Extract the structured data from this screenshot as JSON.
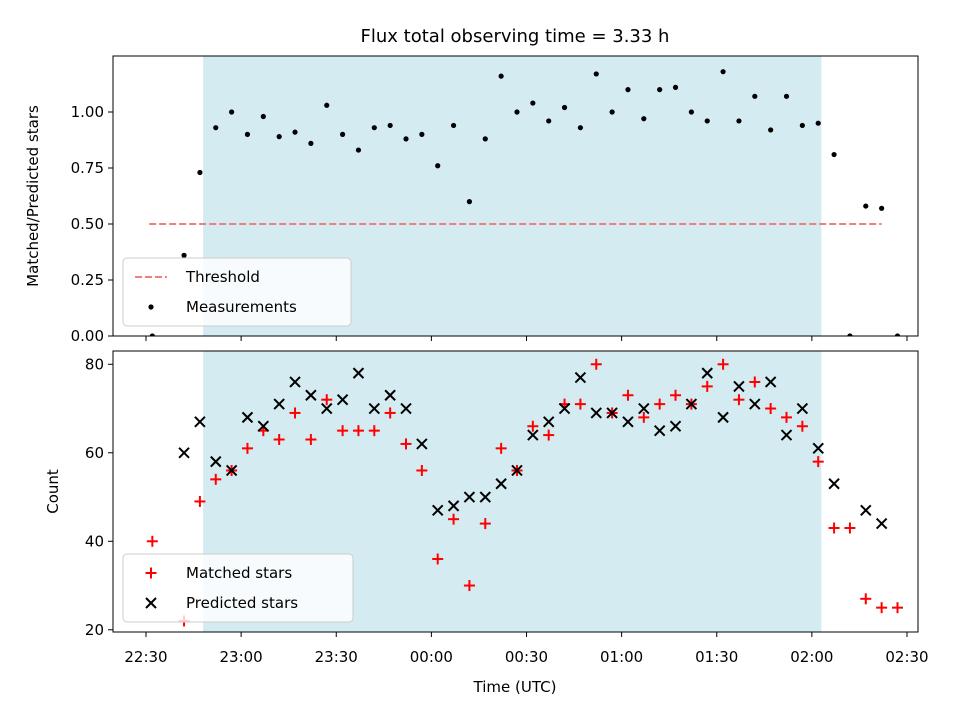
{
  "chart_data": {
    "type": "scatter",
    "title": "Flux total observing time = 3.33 h",
    "xlabel": "Time (UTC)",
    "x_ticks": [
      "22:30",
      "23:00",
      "23:30",
      "00:00",
      "00:30",
      "01:00",
      "01:30",
      "02:00",
      "02:30"
    ],
    "shaded_window": {
      "start": "22:48",
      "end": "02:03",
      "color": "#add8e6"
    },
    "panels": [
      {
        "ylabel": "Matched/Predicted stars",
        "ylim": [
          0,
          1.25
        ],
        "y_ticks": [
          "0.00",
          "0.25",
          "0.50",
          "0.75",
          "1.00"
        ],
        "legend_position": "lower-left",
        "threshold": {
          "name": "Threshold",
          "value": 0.5,
          "x_start": "22:31",
          "x_end": "02:22",
          "color": "#f08080"
        },
        "series": [
          {
            "name": "Measurements",
            "marker": "dot",
            "color": "#000000",
            "points": [
              [
                "22:32",
                0.0
              ],
              [
                "22:42",
                0.36
              ],
              [
                "22:47",
                0.73
              ],
              [
                "22:52",
                0.93
              ],
              [
                "22:57",
                1.0
              ],
              [
                "23:02",
                0.9
              ],
              [
                "23:07",
                0.98
              ],
              [
                "23:12",
                0.89
              ],
              [
                "23:17",
                0.91
              ],
              [
                "23:22",
                0.86
              ],
              [
                "23:27",
                1.03
              ],
              [
                "23:32",
                0.9
              ],
              [
                "23:37",
                0.83
              ],
              [
                "23:42",
                0.93
              ],
              [
                "23:47",
                0.94
              ],
              [
                "23:52",
                0.88
              ],
              [
                "23:57",
                0.9
              ],
              [
                "00:02",
                0.76
              ],
              [
                "00:07",
                0.94
              ],
              [
                "00:12",
                0.6
              ],
              [
                "00:17",
                0.88
              ],
              [
                "00:22",
                1.16
              ],
              [
                "00:27",
                1.0
              ],
              [
                "00:32",
                1.04
              ],
              [
                "00:37",
                0.96
              ],
              [
                "00:42",
                1.02
              ],
              [
                "00:47",
                0.93
              ],
              [
                "00:52",
                1.17
              ],
              [
                "00:57",
                1.0
              ],
              [
                "01:02",
                1.1
              ],
              [
                "01:07",
                0.97
              ],
              [
                "01:12",
                1.1
              ],
              [
                "01:17",
                1.11
              ],
              [
                "01:22",
                1.0
              ],
              [
                "01:27",
                0.96
              ],
              [
                "01:32",
                1.18
              ],
              [
                "01:37",
                0.96
              ],
              [
                "01:42",
                1.07
              ],
              [
                "01:47",
                0.92
              ],
              [
                "01:52",
                1.07
              ],
              [
                "01:57",
                0.94
              ],
              [
                "02:02",
                0.95
              ],
              [
                "02:07",
                0.81
              ],
              [
                "02:12",
                0.0
              ],
              [
                "02:17",
                0.58
              ],
              [
                "02:22",
                0.57
              ],
              [
                "02:27",
                0.0
              ]
            ]
          }
        ]
      },
      {
        "ylabel": "Count",
        "ylim": [
          19.5,
          83
        ],
        "y_ticks": [
          "20",
          "40",
          "60",
          "80"
        ],
        "legend_position": "lower-left",
        "series": [
          {
            "name": "Matched stars",
            "marker": "plus",
            "color": "#ff0000",
            "points": [
              [
                "22:32",
                40
              ],
              [
                "22:42",
                22
              ],
              [
                "22:47",
                49
              ],
              [
                "22:52",
                54
              ],
              [
                "22:57",
                56
              ],
              [
                "23:02",
                61
              ],
              [
                "23:07",
                65
              ],
              [
                "23:12",
                63
              ],
              [
                "23:17",
                69
              ],
              [
                "23:22",
                63
              ],
              [
                "23:27",
                72
              ],
              [
                "23:32",
                65
              ],
              [
                "23:37",
                65
              ],
              [
                "23:42",
                65
              ],
              [
                "23:47",
                69
              ],
              [
                "23:52",
                62
              ],
              [
                "23:57",
                56
              ],
              [
                "00:02",
                36
              ],
              [
                "00:07",
                45
              ],
              [
                "00:12",
                30
              ],
              [
                "00:17",
                44
              ],
              [
                "00:22",
                61
              ],
              [
                "00:27",
                56
              ],
              [
                "00:32",
                66
              ],
              [
                "00:37",
                64
              ],
              [
                "00:42",
                71
              ],
              [
                "00:47",
                71
              ],
              [
                "00:52",
                80
              ],
              [
                "00:57",
                69
              ],
              [
                "01:02",
                73
              ],
              [
                "01:07",
                68
              ],
              [
                "01:12",
                71
              ],
              [
                "01:17",
                73
              ],
              [
                "01:22",
                71
              ],
              [
                "01:27",
                75
              ],
              [
                "01:32",
                80
              ],
              [
                "01:37",
                72
              ],
              [
                "01:42",
                76
              ],
              [
                "01:47",
                70
              ],
              [
                "01:52",
                68
              ],
              [
                "01:57",
                66
              ],
              [
                "02:02",
                58
              ],
              [
                "02:07",
                43
              ],
              [
                "02:12",
                43
              ],
              [
                "02:17",
                27
              ],
              [
                "02:22",
                25
              ],
              [
                "02:27",
                25
              ]
            ]
          },
          {
            "name": "Predicted stars",
            "marker": "x",
            "color": "#000000",
            "points": [
              [
                "22:42",
                60
              ],
              [
                "22:47",
                67
              ],
              [
                "22:52",
                58
              ],
              [
                "22:57",
                56
              ],
              [
                "23:02",
                68
              ],
              [
                "23:07",
                66
              ],
              [
                "23:12",
                71
              ],
              [
                "23:17",
                76
              ],
              [
                "23:22",
                73
              ],
              [
                "23:27",
                70
              ],
              [
                "23:32",
                72
              ],
              [
                "23:37",
                78
              ],
              [
                "23:42",
                70
              ],
              [
                "23:47",
                73
              ],
              [
                "23:52",
                70
              ],
              [
                "23:57",
                62
              ],
              [
                "00:02",
                47
              ],
              [
                "00:07",
                48
              ],
              [
                "00:12",
                50
              ],
              [
                "00:17",
                50
              ],
              [
                "00:22",
                53
              ],
              [
                "00:27",
                56
              ],
              [
                "00:32",
                64
              ],
              [
                "00:37",
                67
              ],
              [
                "00:42",
                70
              ],
              [
                "00:47",
                77
              ],
              [
                "00:52",
                69
              ],
              [
                "00:57",
                69
              ],
              [
                "01:02",
                67
              ],
              [
                "01:07",
                70
              ],
              [
                "01:12",
                65
              ],
              [
                "01:17",
                66
              ],
              [
                "01:22",
                71
              ],
              [
                "01:27",
                78
              ],
              [
                "01:32",
                68
              ],
              [
                "01:37",
                75
              ],
              [
                "01:42",
                71
              ],
              [
                "01:47",
                76
              ],
              [
                "01:52",
                64
              ],
              [
                "01:57",
                70
              ],
              [
                "02:02",
                61
              ],
              [
                "02:07",
                53
              ],
              [
                "02:17",
                47
              ],
              [
                "02:22",
                44
              ]
            ]
          }
        ]
      }
    ]
  }
}
